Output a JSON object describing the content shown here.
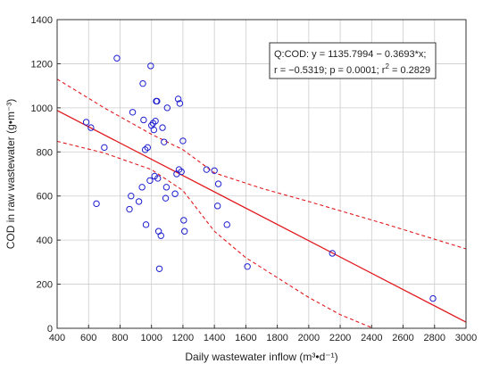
{
  "chart_data": {
    "type": "scatter",
    "xlabel": "Daily wastewater inflow (m³•d⁻¹)",
    "ylabel": "COD in raw wastewater (g•m⁻³)",
    "xlim": [
      400,
      3000
    ],
    "ylim": [
      0,
      1400
    ],
    "x_ticks": [
      400,
      600,
      800,
      1000,
      1200,
      1400,
      1600,
      1800,
      2000,
      2200,
      2400,
      2600,
      2800,
      3000
    ],
    "y_ticks": [
      0,
      200,
      400,
      600,
      800,
      1000,
      1200,
      1400
    ],
    "grid": true,
    "annotation": {
      "line1": "Q:COD:   y = 1135.7994 − 0.3693*x;",
      "line2_prefix": "r = −0.5319; p = 0.0001; r",
      "line2_sup": "2",
      "line2_suffix": " = 0.2829"
    },
    "regression": {
      "intercept": 1135.7994,
      "slope": -0.3693
    },
    "confidence_band": {
      "upper": [
        [
          400,
          1130
        ],
        [
          700,
          1000
        ],
        [
          1000,
          880
        ],
        [
          1200,
          810
        ],
        [
          1400,
          705
        ],
        [
          1700,
          635
        ],
        [
          2000,
          575
        ],
        [
          2500,
          470
        ],
        [
          3000,
          360
        ]
      ],
      "lower": [
        [
          400,
          848
        ],
        [
          700,
          795
        ],
        [
          1000,
          720
        ],
        [
          1200,
          625
        ],
        [
          1400,
          440
        ],
        [
          1600,
          320
        ],
        [
          1800,
          230
        ],
        [
          2000,
          140
        ],
        [
          2200,
          62
        ],
        [
          2410,
          0
        ]
      ]
    },
    "points": [
      [
        585,
        935
      ],
      [
        615,
        910
      ],
      [
        650,
        565
      ],
      [
        700,
        820
      ],
      [
        780,
        1225
      ],
      [
        860,
        540
      ],
      [
        870,
        600
      ],
      [
        880,
        980
      ],
      [
        920,
        575
      ],
      [
        940,
        640
      ],
      [
        945,
        1110
      ],
      [
        950,
        945
      ],
      [
        960,
        810
      ],
      [
        965,
        470
      ],
      [
        975,
        820
      ],
      [
        990,
        670
      ],
      [
        995,
        1190
      ],
      [
        1000,
        920
      ],
      [
        1010,
        930
      ],
      [
        1015,
        900
      ],
      [
        1020,
        690
      ],
      [
        1025,
        940
      ],
      [
        1030,
        1030
      ],
      [
        1035,
        1030
      ],
      [
        1040,
        680
      ],
      [
        1045,
        440
      ],
      [
        1050,
        270
      ],
      [
        1060,
        420
      ],
      [
        1070,
        910
      ],
      [
        1080,
        845
      ],
      [
        1090,
        590
      ],
      [
        1095,
        640
      ],
      [
        1100,
        1000
      ],
      [
        1150,
        610
      ],
      [
        1160,
        700
      ],
      [
        1170,
        1040
      ],
      [
        1175,
        720
      ],
      [
        1180,
        1020
      ],
      [
        1190,
        710
      ],
      [
        1200,
        850
      ],
      [
        1205,
        490
      ],
      [
        1210,
        440
      ],
      [
        1350,
        720
      ],
      [
        1400,
        715
      ],
      [
        1420,
        555
      ],
      [
        1425,
        655
      ],
      [
        1480,
        470
      ],
      [
        1610,
        280
      ],
      [
        2150,
        340
      ],
      [
        2790,
        135
      ]
    ],
    "colors": {
      "points": "#1f1fd0",
      "line": "#e0191e",
      "grid": "#cccccc",
      "axis": "#333333"
    }
  }
}
